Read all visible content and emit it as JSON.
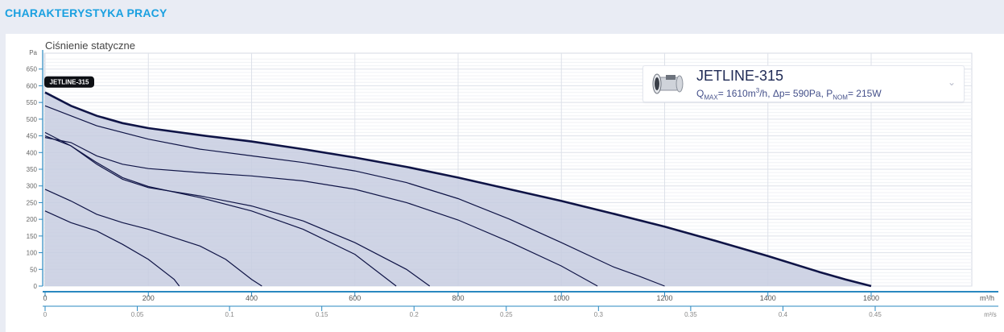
{
  "header": {
    "title": "CHARAKTERYSTYKA PRACY"
  },
  "chart_data": {
    "type": "area",
    "ylabel": "Ciśnienie statyczne",
    "y_unit": "Pa",
    "x_unit": "m³/h",
    "x2_unit": "m³/s",
    "xlim": [
      0,
      1640
    ],
    "ylim": [
      0,
      680
    ],
    "y_ticks": [
      0,
      50,
      100,
      150,
      200,
      250,
      300,
      350,
      400,
      450,
      500,
      550,
      600,
      650
    ],
    "x_ticks": [
      0,
      200,
      400,
      600,
      800,
      1000,
      1200,
      1400,
      1600
    ],
    "x2_ticks": [
      "0",
      "0.05",
      "0.1",
      "0.15",
      "0.2",
      "0.25",
      "0.3",
      "0.35",
      "0.4",
      "0.45"
    ],
    "x2_tick_values": [
      0,
      0.05,
      0.1,
      0.15,
      0.2,
      0.25,
      0.3,
      0.35,
      0.4,
      0.45
    ],
    "series_label": "JETLINE-315",
    "max_curve": [
      [
        0,
        580
      ],
      [
        50,
        540
      ],
      [
        100,
        510
      ],
      [
        150,
        488
      ],
      [
        200,
        473
      ],
      [
        300,
        452
      ],
      [
        400,
        433
      ],
      [
        500,
        410
      ],
      [
        600,
        385
      ],
      [
        700,
        357
      ],
      [
        800,
        325
      ],
      [
        900,
        290
      ],
      [
        1000,
        255
      ],
      [
        1100,
        217
      ],
      [
        1200,
        178
      ],
      [
        1300,
        135
      ],
      [
        1400,
        90
      ],
      [
        1500,
        42
      ],
      [
        1550,
        20
      ],
      [
        1600,
        0
      ]
    ],
    "speed_curves": [
      [
        [
          0,
          540
        ],
        [
          100,
          480
        ],
        [
          200,
          440
        ],
        [
          300,
          410
        ],
        [
          400,
          390
        ],
        [
          500,
          370
        ],
        [
          600,
          345
        ],
        [
          700,
          310
        ],
        [
          800,
          262
        ],
        [
          900,
          200
        ],
        [
          1000,
          130
        ],
        [
          1100,
          58
        ],
        [
          1150,
          30
        ],
        [
          1200,
          0
        ]
      ],
      [
        [
          0,
          445
        ],
        [
          50,
          430
        ],
        [
          100,
          390
        ],
        [
          150,
          365
        ],
        [
          200,
          352
        ],
        [
          300,
          340
        ],
        [
          400,
          330
        ],
        [
          500,
          315
        ],
        [
          600,
          290
        ],
        [
          700,
          250
        ],
        [
          800,
          198
        ],
        [
          900,
          132
        ],
        [
          1000,
          60
        ],
        [
          1070,
          0
        ]
      ],
      [
        [
          0,
          460
        ],
        [
          50,
          420
        ],
        [
          100,
          365
        ],
        [
          150,
          320
        ],
        [
          200,
          295
        ],
        [
          300,
          270
        ],
        [
          400,
          240
        ],
        [
          500,
          195
        ],
        [
          600,
          130
        ],
        [
          700,
          50
        ],
        [
          745,
          0
        ]
      ],
      [
        [
          0,
          450
        ],
        [
          50,
          420
        ],
        [
          100,
          370
        ],
        [
          150,
          325
        ],
        [
          200,
          298
        ],
        [
          300,
          265
        ],
        [
          400,
          225
        ],
        [
          500,
          170
        ],
        [
          600,
          95
        ],
        [
          680,
          0
        ]
      ],
      [
        [
          0,
          290
        ],
        [
          50,
          255
        ],
        [
          100,
          215
        ],
        [
          150,
          190
        ],
        [
          200,
          170
        ],
        [
          300,
          120
        ],
        [
          350,
          80
        ],
        [
          400,
          20
        ],
        [
          420,
          0
        ]
      ],
      [
        [
          0,
          225
        ],
        [
          50,
          190
        ],
        [
          100,
          165
        ],
        [
          150,
          125
        ],
        [
          200,
          80
        ],
        [
          250,
          20
        ],
        [
          260,
          0
        ]
      ]
    ]
  },
  "legend": {
    "name": "JETLINE-315",
    "qmax": "1610m",
    "dp": "590Pa",
    "pnom": "215W",
    "icon": "fan-icon",
    "chevron": "chevron-down-icon"
  },
  "colors": {
    "title": "#1aa0e0",
    "curve": "#0f1446",
    "fill": "#c7cde0",
    "axis": "#2a88c0"
  }
}
